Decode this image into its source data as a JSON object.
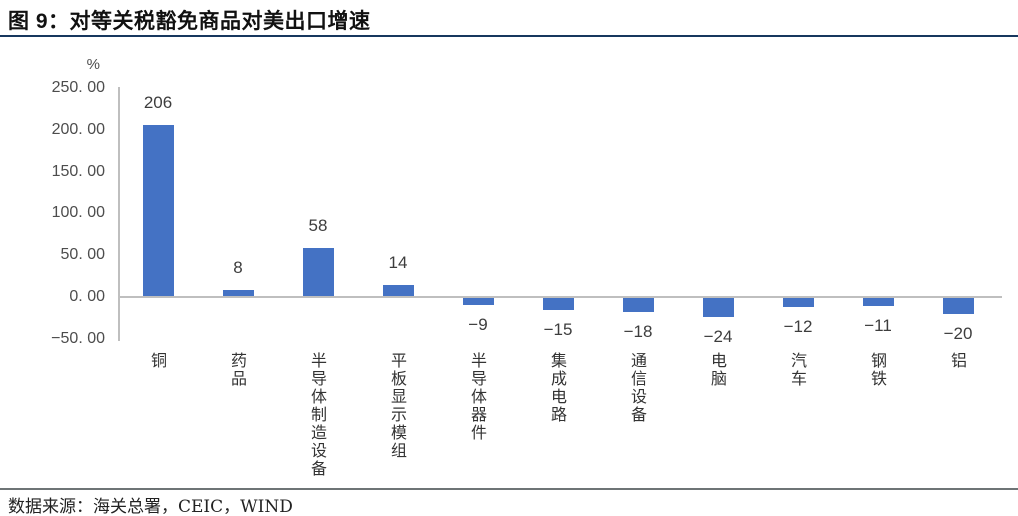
{
  "header": {
    "title": "图 9：对等关税豁免商品对美出口增速"
  },
  "footer": {
    "source": "数据来源：海关总署，CEIC，WIND"
  },
  "colors": {
    "bar": "#4472C4",
    "title_rule": "#17375E",
    "footer_rule": "#6E7476",
    "axis_line": "#BFBFBF",
    "tick_text": "#4d4d4d",
    "value_text": "#3d3d3d"
  },
  "y_axis": {
    "unit": "%",
    "ticks": [
      {
        "value": 250,
        "label": "250. 00"
      },
      {
        "value": 200,
        "label": "200. 00"
      },
      {
        "value": 150,
        "label": "150. 00"
      },
      {
        "value": 100,
        "label": "100. 00"
      },
      {
        "value": 50,
        "label": "50. 00"
      },
      {
        "value": 0,
        "label": "0. 00"
      },
      {
        "value": -50,
        "label": "−50. 00"
      }
    ]
  },
  "chart_data": {
    "type": "bar",
    "title": "图 9：对等关税豁免商品对美出口增速",
    "categories": [
      "铜",
      "药品",
      "半导体制造设备",
      "平板显示模组",
      "半导体器件",
      "集成电路",
      "通信设备",
      "电脑",
      "汽车",
      "钢铁",
      "铝"
    ],
    "values": [
      206,
      8,
      58,
      14,
      -9,
      -15,
      -18,
      -24,
      -12,
      -11,
      -20
    ],
    "value_labels": [
      "206",
      "8",
      "58",
      "14",
      "−9",
      "−15",
      "−18",
      "−24",
      "−12",
      "−11",
      "−20"
    ],
    "xlabel": "",
    "ylabel": "%",
    "ylim": [
      -50,
      250
    ],
    "y_step": 50,
    "grid": false,
    "legend": "none",
    "bar_color": "#4472C4"
  }
}
